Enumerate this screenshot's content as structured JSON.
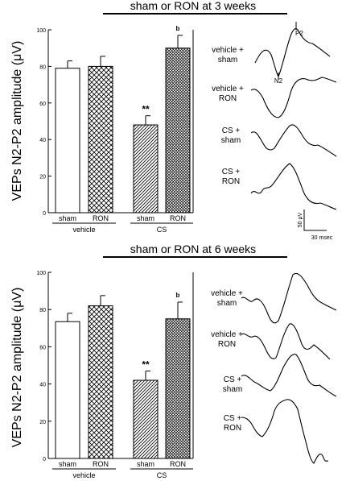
{
  "chart_data": [
    {
      "type": "bar",
      "title": "sham or RON at 3 weeks",
      "ylabel": "VEPs N2-P2 amplitude (μV)",
      "ylim": [
        0,
        100
      ],
      "yticks": [
        0,
        20,
        40,
        60,
        80,
        100
      ],
      "groups": [
        {
          "label": "vehicle",
          "categories": [
            "sham",
            "RON"
          ]
        },
        {
          "label": "CS",
          "categories": [
            "sham",
            "RON"
          ]
        }
      ],
      "bars": [
        {
          "group": "vehicle",
          "category": "sham",
          "value": 79,
          "error": 4,
          "pattern": "open"
        },
        {
          "group": "vehicle",
          "category": "RON",
          "value": 80,
          "error": 5.5,
          "pattern": "crosshatch"
        },
        {
          "group": "CS",
          "category": "sham",
          "value": 48,
          "error": 5,
          "pattern": "diagonal",
          "annotation": "**"
        },
        {
          "group": "CS",
          "category": "RON",
          "value": 90,
          "error": 7,
          "pattern": "dense-crosshatch",
          "annotation": "b"
        }
      ],
      "waveforms": {
        "labels": [
          [
            "vehicle +",
            "sham"
          ],
          [
            "vehicle +",
            "RON"
          ],
          [
            "CS +",
            "sham"
          ],
          [
            "CS +",
            "RON"
          ]
        ],
        "peak_labels": [
          "N2",
          "P2"
        ],
        "scale_bar": {
          "amplitude": "50 μV",
          "time": "30 msec"
        }
      }
    },
    {
      "type": "bar",
      "title": "sham or RON at 6 weeks",
      "ylabel": "VEPs N2-P2 amplitude (μV)",
      "ylim": [
        0,
        100
      ],
      "yticks": [
        0,
        20,
        40,
        60,
        80,
        100
      ],
      "groups": [
        {
          "label": "vehicle",
          "categories": [
            "sham",
            "RON"
          ]
        },
        {
          "label": "CS",
          "categories": [
            "sham",
            "RON"
          ]
        }
      ],
      "bars": [
        {
          "group": "vehicle",
          "category": "sham",
          "value": 73.5,
          "error": 4.5,
          "pattern": "open"
        },
        {
          "group": "vehicle",
          "category": "RON",
          "value": 82,
          "error": 5.5,
          "pattern": "crosshatch"
        },
        {
          "group": "CS",
          "category": "sham",
          "value": 42,
          "error": 5,
          "pattern": "diagonal",
          "annotation": "**"
        },
        {
          "group": "CS",
          "category": "RON",
          "value": 75,
          "error": 9,
          "pattern": "dense-crosshatch",
          "annotation": "b"
        }
      ],
      "waveforms": {
        "labels": [
          [
            "vehicle +",
            "sham"
          ],
          [
            "vehicle +",
            "RON"
          ],
          [
            "CS +",
            "sham"
          ],
          [
            "CS +",
            "RON"
          ]
        ]
      }
    }
  ]
}
